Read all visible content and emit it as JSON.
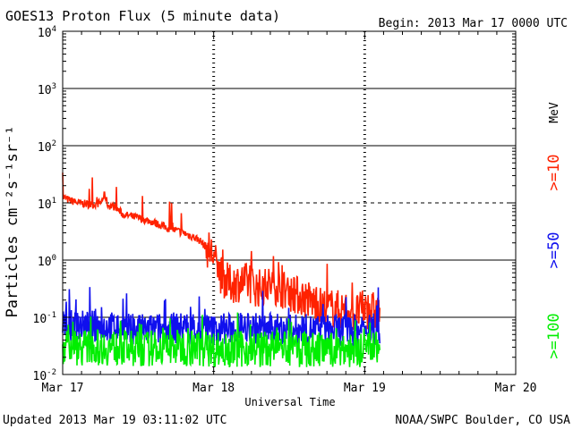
{
  "header": {
    "title": "GOES13 Proton Flux (5 minute data)",
    "begin": "Begin: 2013 Mar 17 0000 UTC"
  },
  "footer": {
    "updated": "Updated 2013 Mar 19 03:11:02 UTC",
    "credit": "NOAA/SWPC Boulder, CO USA"
  },
  "colors": {
    "ge10": "#ff2200",
    "ge50": "#1010ee",
    "ge100": "#00ee00",
    "frame": "#000000"
  },
  "chart_data": {
    "type": "line",
    "title": "GOES13 Proton Flux (5 minute data)",
    "xlabel": "Universal Time",
    "ylabel": "Particles cm⁻²s⁻¹sr⁻¹",
    "yscale": "log",
    "ylim": [
      0.01,
      10000
    ],
    "xlim": [
      0,
      3
    ],
    "x_unit": "days since 2013 Mar 17 0000 UTC",
    "x_ticks": [
      {
        "x": 0,
        "label": "Mar 17"
      },
      {
        "x": 1,
        "label": "Mar 18"
      },
      {
        "x": 2,
        "label": "Mar 19"
      },
      {
        "x": 3,
        "label": "Mar 20"
      }
    ],
    "y_ticks": [
      {
        "value": 10000,
        "base": "10",
        "exp": "4"
      },
      {
        "value": 1000,
        "base": "10",
        "exp": "3"
      },
      {
        "value": 100,
        "base": "10",
        "exp": "2"
      },
      {
        "value": 10,
        "base": "10",
        "exp": "1"
      },
      {
        "value": 1,
        "base": "10",
        "exp": "0"
      },
      {
        "value": 0.1,
        "base": "10",
        "exp": "-1"
      },
      {
        "value": 0.01,
        "base": "10",
        "exp": "-2"
      }
    ],
    "solid_gridlines": [
      1000,
      100,
      1,
      0.1
    ],
    "dashed_gridlines": [
      10
    ],
    "day_markers": [
      1,
      2
    ],
    "legend": {
      "placement": "right",
      "unit": "MeV",
      "entries": [
        {
          "label": ">=10",
          "color": "#ff2200"
        },
        {
          "label": ">=50",
          "color": "#1010ee"
        },
        {
          "label": ">=100",
          "color": "#00ee00"
        }
      ]
    },
    "series": [
      {
        "name": ">=10 MeV",
        "color": "#ff2200",
        "x": [
          0.0,
          0.05,
          0.1,
          0.15,
          0.2,
          0.25,
          0.28,
          0.3,
          0.35,
          0.4,
          0.5,
          0.6,
          0.7,
          0.8,
          0.9,
          0.95,
          1.0,
          1.02,
          1.05,
          1.1,
          1.2,
          1.3,
          1.4,
          1.5,
          1.6,
          1.7,
          1.8,
          1.9,
          1.95,
          2.0,
          2.05,
          2.1
        ],
        "values": [
          12.5,
          11.0,
          10.0,
          9.6,
          9.3,
          10.0,
          14.0,
          9.0,
          8.5,
          6.2,
          5.5,
          4.6,
          3.6,
          3.0,
          2.3,
          1.7,
          1.2,
          0.75,
          0.55,
          0.38,
          0.42,
          0.32,
          0.38,
          0.27,
          0.22,
          0.16,
          0.14,
          0.13,
          0.12,
          0.14,
          0.13,
          0.12
        ]
      },
      {
        "name": ">=50 MeV",
        "color": "#1010ee",
        "x": [
          0.0,
          0.25,
          0.5,
          0.75,
          1.0,
          1.25,
          1.5,
          1.75,
          2.0,
          2.1
        ],
        "values": [
          0.07,
          0.07,
          0.06,
          0.065,
          0.06,
          0.065,
          0.06,
          0.06,
          0.06,
          0.06
        ]
      },
      {
        "name": ">=100 MeV",
        "color": "#00ee00",
        "x": [
          0.0,
          0.25,
          0.5,
          0.75,
          1.0,
          1.25,
          1.5,
          1.75,
          2.0,
          2.1
        ],
        "values": [
          0.03,
          0.03,
          0.028,
          0.03,
          0.028,
          0.028,
          0.027,
          0.027,
          0.027,
          0.027
        ]
      }
    ]
  }
}
